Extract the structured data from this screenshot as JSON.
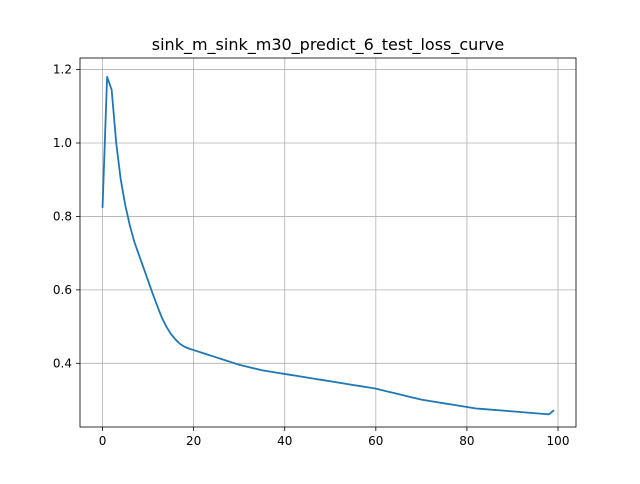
{
  "chart_data": {
    "type": "line",
    "title": "sink_m_sink_m30_predict_6_test_loss_curve",
    "xlabel": "",
    "ylabel": "",
    "xlim": [
      -4.95,
      103.95
    ],
    "ylim": [
      0.2265,
      1.2315
    ],
    "xticks": [
      0,
      20,
      40,
      60,
      80,
      100
    ],
    "yticks": [
      0.4,
      0.6,
      0.8,
      1.0,
      1.2
    ],
    "ytick_labels": [
      "0.4",
      "0.6",
      "0.8",
      "1.0",
      "1.2"
    ],
    "grid": true,
    "line_color": "#1f77b4",
    "series": [
      {
        "x": [
          0,
          1,
          2,
          3,
          4,
          5,
          6,
          7,
          8,
          9,
          10,
          11,
          12,
          13,
          14,
          15,
          16,
          17,
          18,
          19,
          20,
          21,
          22,
          23,
          24,
          25,
          26,
          27,
          28,
          29,
          30,
          31,
          32,
          33,
          34,
          35,
          36,
          37,
          38,
          39,
          40,
          41,
          42,
          43,
          44,
          45,
          46,
          47,
          48,
          49,
          50,
          51,
          52,
          53,
          54,
          55,
          56,
          57,
          58,
          59,
          60,
          61,
          62,
          63,
          64,
          65,
          66,
          67,
          68,
          69,
          70,
          71,
          72,
          73,
          74,
          75,
          76,
          77,
          78,
          79,
          80,
          81,
          82,
          83,
          84,
          85,
          86,
          87,
          88,
          89,
          90,
          91,
          92,
          93,
          94,
          95,
          96,
          97,
          98,
          99
        ],
        "y": [
          0.825,
          1.18,
          1.145,
          1.0,
          0.9,
          0.83,
          0.775,
          0.73,
          0.695,
          0.66,
          0.625,
          0.59,
          0.557,
          0.525,
          0.5,
          0.48,
          0.465,
          0.453,
          0.445,
          0.44,
          0.436,
          0.432,
          0.428,
          0.424,
          0.42,
          0.416,
          0.412,
          0.408,
          0.404,
          0.4,
          0.396,
          0.393,
          0.39,
          0.387,
          0.384,
          0.381,
          0.379,
          0.377,
          0.375,
          0.373,
          0.371,
          0.369,
          0.367,
          0.365,
          0.363,
          0.361,
          0.359,
          0.357,
          0.355,
          0.353,
          0.351,
          0.349,
          0.347,
          0.345,
          0.343,
          0.341,
          0.339,
          0.337,
          0.335,
          0.333,
          0.331,
          0.328,
          0.325,
          0.322,
          0.319,
          0.316,
          0.313,
          0.31,
          0.307,
          0.304,
          0.301,
          0.299,
          0.297,
          0.295,
          0.293,
          0.291,
          0.289,
          0.287,
          0.285,
          0.283,
          0.281,
          0.279,
          0.277,
          0.276,
          0.275,
          0.274,
          0.273,
          0.272,
          0.271,
          0.27,
          0.269,
          0.268,
          0.267,
          0.266,
          0.265,
          0.264,
          0.263,
          0.262,
          0.261,
          0.271
        ]
      }
    ]
  }
}
